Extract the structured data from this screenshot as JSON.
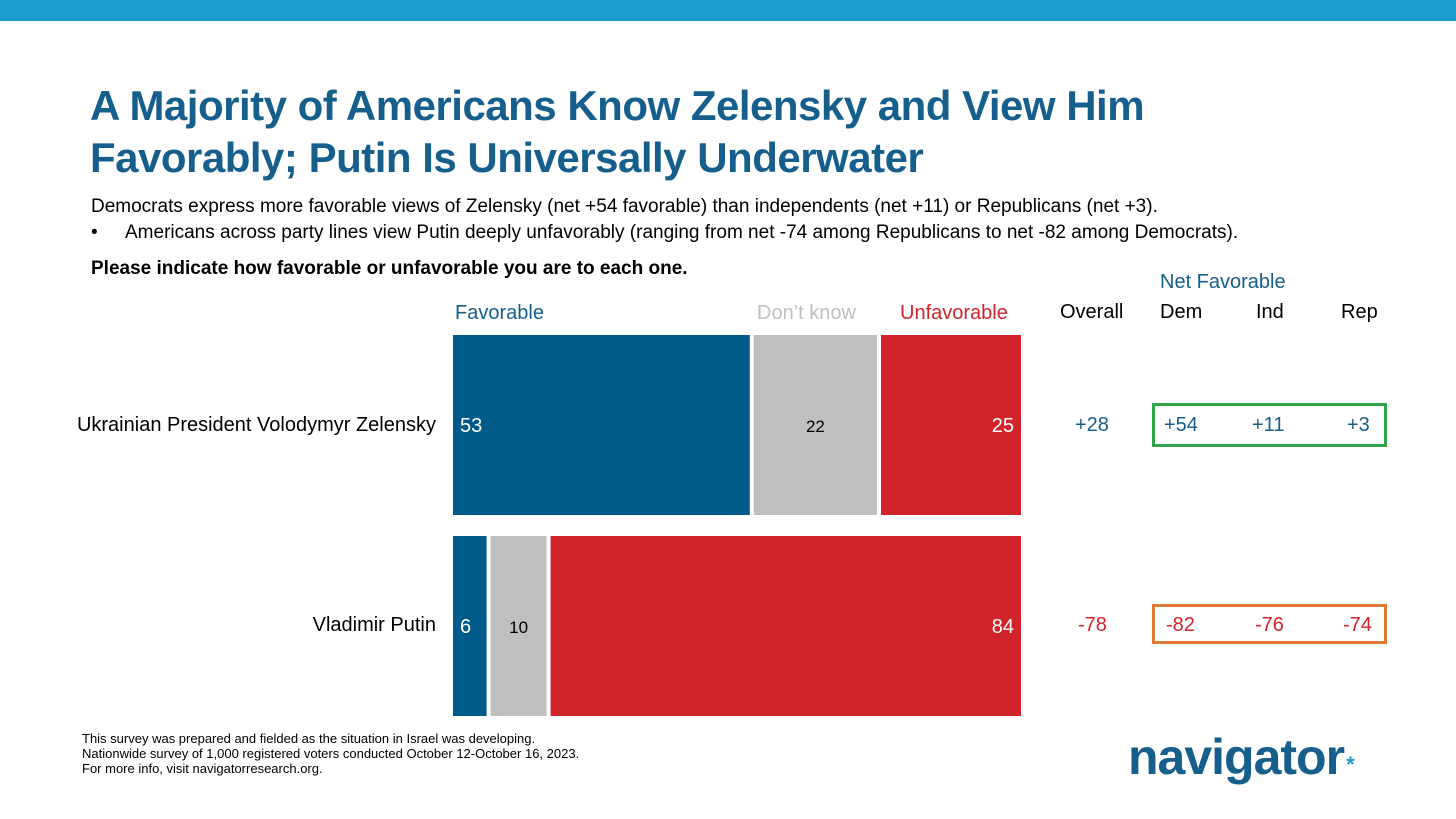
{
  "title_line1": "A Majority of Americans Know Zelensky and View Him",
  "title_line2": "Favorably; Putin Is Universally Underwater",
  "subtitle": "Democrats express more favorable views of Zelensky (net +54 favorable) than independents (net +11) or Republicans (net +3).",
  "bullet_symbol": "•",
  "bullet": "Americans across party lines view Putin deeply unfavorably (ranging from net -74 among Republicans to net -82 among Democrats).",
  "question": "Please indicate how favorable or unfavorable you are to each one.",
  "headers": {
    "favorable": "Favorable",
    "dont_know": "Don’t know",
    "unfavorable": "Unfavorable",
    "overall": "Overall",
    "net_favorable": "Net Favorable",
    "dem": "Dem",
    "ind": "Ind",
    "rep": "Rep"
  },
  "colors": {
    "favorable": "#005b8a",
    "dont_know": "#bfbfbe",
    "unfavorable": "#d1242a",
    "title": "#165f8c",
    "top_bar": "#1b9ccf",
    "highlight_positive": "#2fa548",
    "highlight_negative": "#e07a35"
  },
  "chart_data": {
    "type": "bar",
    "stacked": true,
    "orientation": "horizontal",
    "categories": [
      "Ukrainian President Volodymyr Zelensky",
      "Vladimir Putin"
    ],
    "series": [
      {
        "name": "Favorable",
        "values": [
          53,
          6
        ]
      },
      {
        "name": "Don’t know",
        "values": [
          22,
          10
        ]
      },
      {
        "name": "Unfavorable",
        "values": [
          25,
          84
        ]
      }
    ]
  },
  "net": [
    {
      "overall": "+28",
      "dem": "+54",
      "ind": "+11",
      "rep": "+3"
    },
    {
      "overall": "-78",
      "dem": "-82",
      "ind": "-76",
      "rep": "-74"
    }
  ],
  "footnotes": [
    "This survey was prepared and fielded as the situation in Israel was developing.",
    "Nationwide survey of 1,000 registered voters conducted October 12-October 16, 2023.",
    "For more info, visit navigatorresearch.org."
  ],
  "logo_text": "navigator",
  "logo_mark": "*"
}
